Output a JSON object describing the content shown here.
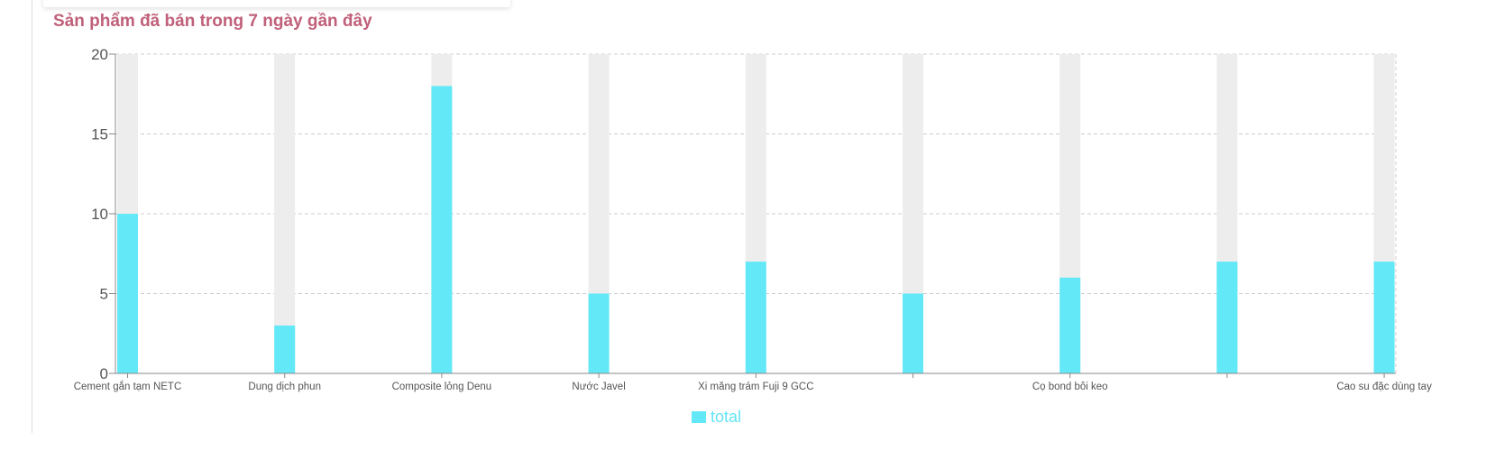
{
  "page": {
    "title": "Sản phẩm đã bán trong 7 ngày gần đây"
  },
  "colors": {
    "title": "#c0607a",
    "bar": "#63e8f8",
    "bar_track": "#ededed",
    "grid": "#cccccc",
    "legend_text": "#63e5f4"
  },
  "chart_data": {
    "type": "bar",
    "title": "Sản phẩm đã bán trong 7 ngày gần đây",
    "categories": [
      "Cement gắn tạm NETC",
      "Dung dịch phun",
      "Composite lỏng Denu",
      "Nước Javel",
      "Xi măng trám Fuji 9 GCC",
      "",
      "Cọ bond bôi keo",
      "",
      "Cao su đặc dùng tay"
    ],
    "series": [
      {
        "name": "total",
        "values": [
          10,
          3,
          18,
          5,
          7,
          5,
          6,
          7,
          7
        ]
      }
    ],
    "ylim": [
      0,
      20
    ],
    "yticks": [
      0,
      5,
      10,
      15,
      20
    ],
    "grid": true,
    "legend_position": "bottom-center"
  }
}
